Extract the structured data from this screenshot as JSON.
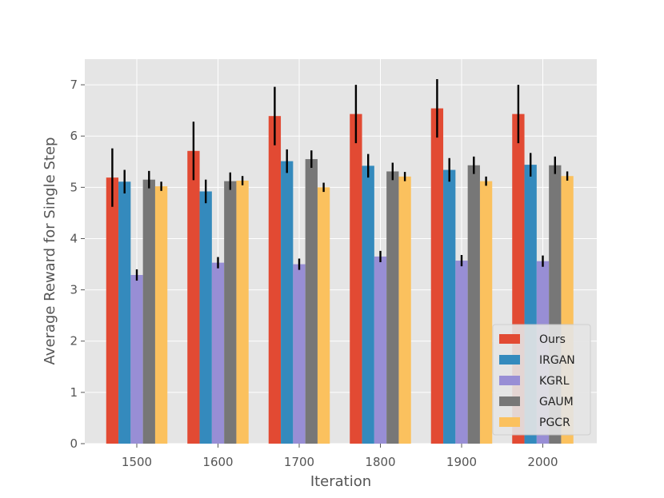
{
  "chart_data": {
    "type": "bar",
    "title": "",
    "xlabel": "Iteration",
    "ylabel": "Average Reward for Single Step",
    "categories": [
      "1500",
      "1600",
      "1700",
      "1800",
      "1900",
      "2000"
    ],
    "ylim": [
      0,
      7.5
    ],
    "yticks": [
      0,
      1,
      2,
      3,
      4,
      5,
      6,
      7
    ],
    "grid": true,
    "legend_position": "bottom-right",
    "series": [
      {
        "name": "Ours",
        "color": "#E24A33",
        "values": [
          5.19,
          5.71,
          6.39,
          6.43,
          6.54,
          6.43
        ],
        "errors": [
          0.57,
          0.57,
          0.57,
          0.57,
          0.57,
          0.57
        ]
      },
      {
        "name": "IRGAN",
        "color": "#348ABD",
        "values": [
          5.11,
          4.92,
          5.51,
          5.42,
          5.34,
          5.44
        ],
        "errors": [
          0.23,
          0.23,
          0.23,
          0.23,
          0.23,
          0.23
        ]
      },
      {
        "name": "KGRL",
        "color": "#988ED5",
        "values": [
          3.29,
          3.53,
          3.5,
          3.65,
          3.57,
          3.56
        ],
        "errors": [
          0.11,
          0.11,
          0.11,
          0.11,
          0.11,
          0.11
        ]
      },
      {
        "name": "GAUM",
        "color": "#777777",
        "values": [
          5.15,
          5.12,
          5.55,
          5.31,
          5.43,
          5.43
        ],
        "errors": [
          0.17,
          0.17,
          0.17,
          0.17,
          0.17,
          0.17
        ]
      },
      {
        "name": "PGCR",
        "color": "#FBC15E",
        "values": [
          5.02,
          5.13,
          5.0,
          5.21,
          5.12,
          5.22
        ],
        "errors": [
          0.09,
          0.09,
          0.09,
          0.09,
          0.09,
          0.09
        ]
      }
    ],
    "error_bar_color": "#000000"
  }
}
